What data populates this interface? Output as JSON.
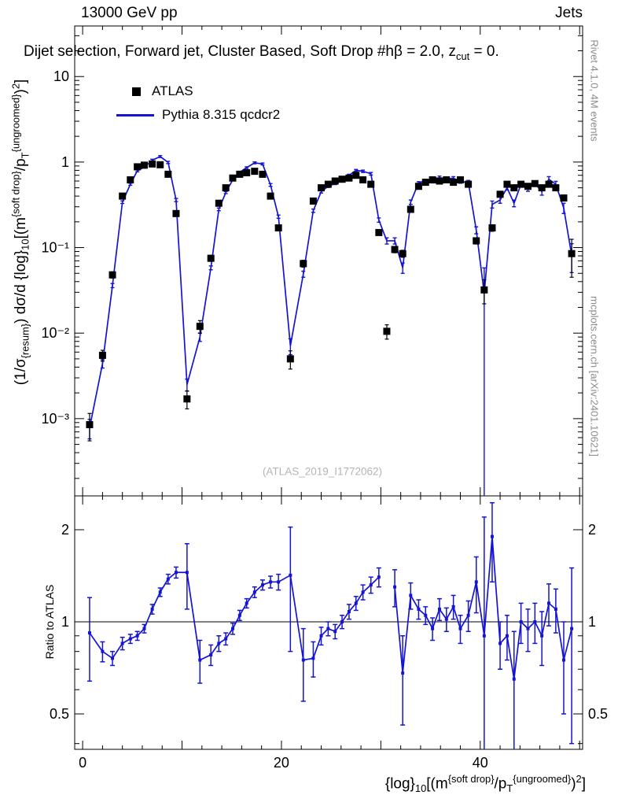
{
  "header": {
    "left": "13000 GeV pp",
    "right": "Jets"
  },
  "title_parts": [
    {
      "t": "Dijet selection, Forward jet, Cluster Based, Soft Drop #hβ = 2.0, z"
    },
    {
      "t": "cut",
      "m": "sub"
    },
    {
      "t": " = 0."
    }
  ],
  "legend": {
    "entries": [
      {
        "label": "ATLAS",
        "marker": "square",
        "color": "#000000"
      },
      {
        "label": "Pythia 8.315 qcdcr2",
        "marker": "line",
        "color": "#1414d2"
      }
    ]
  },
  "side_text_top": "Rivet 4.1.0,  4M events",
  "side_text_bottom": "mcplots.cern.ch [arXiv:2401.10621]",
  "watermark": "(ATLAS_2019_I1772062)",
  "ratio_label": "Ratio to ATLAS",
  "ylabel_parts": [
    {
      "t": "(1/σ"
    },
    {
      "t": "{resum}",
      "m": "sub"
    },
    {
      "t": ") dσ/d {log}"
    },
    {
      "t": "10",
      "m": "sub"
    },
    {
      "t": "[(m"
    },
    {
      "t": "{soft drop}",
      "m": "sup"
    },
    {
      "t": "/p"
    },
    {
      "t": "T",
      "m": "sub"
    },
    {
      "t": "{ungroomed}",
      "m": "sup"
    },
    {
      "t": ")"
    },
    {
      "t": "2",
      "m": "sup"
    },
    {
      "t": "]"
    }
  ],
  "xlabel_parts": [
    {
      "t": "{log}"
    },
    {
      "t": "10",
      "m": "sub"
    },
    {
      "t": "[(m"
    },
    {
      "t": "{soft drop}",
      "m": "sup"
    },
    {
      "t": "/p"
    },
    {
      "t": "T",
      "m": "sub"
    },
    {
      "t": "{ungroomed}",
      "m": "sup"
    },
    {
      "t": ")"
    },
    {
      "t": "2",
      "m": "sup"
    },
    {
      "t": "]"
    }
  ],
  "chart_data": {
    "type": "line",
    "title": "Dijet selection, Forward jet, Cluster Based, Soft Drop #hβ = 2.0, z_cut = 0.",
    "xlabel": "{log}_10[(m^{soft drop}/p_T^{ungroomed})^2]",
    "ylabel": "(1/σ_{resum}) dσ/d {log}_10[(m^{soft drop}/p_T^{ungroomed})^2]",
    "x": [
      0.7,
      2,
      3,
      4,
      4.8,
      5.5,
      6.2,
      7,
      7.8,
      8.6,
      9.4,
      10.5,
      11.8,
      12.9,
      13.7,
      14.4,
      15.1,
      15.8,
      16.5,
      17.3,
      18.1,
      18.9,
      19.7,
      20.9,
      22.2,
      23.2,
      24,
      24.7,
      25.4,
      26.1,
      26.8,
      27.5,
      28.2,
      29,
      29.8,
      30.6,
      31.4,
      32.2,
      33,
      33.8,
      34.5,
      35.2,
      35.9,
      36.6,
      37.3,
      38,
      38.8,
      39.6,
      40.4,
      41.2,
      42,
      42.7,
      43.4,
      44.1,
      44.8,
      45.5,
      46.2,
      46.9,
      47.6,
      48.4,
      49.2
    ],
    "series": [
      {
        "name": "ATLAS",
        "style": "squares",
        "color": "#000000",
        "y": [
          0.00085,
          0.0055,
          0.048,
          0.4,
          0.62,
          0.88,
          0.92,
          0.95,
          0.93,
          0.72,
          0.25,
          0.0017,
          0.012,
          0.075,
          0.33,
          0.5,
          0.65,
          0.72,
          0.75,
          0.78,
          0.72,
          0.4,
          0.17,
          0.005,
          0.065,
          0.35,
          0.5,
          0.55,
          0.6,
          0.63,
          0.65,
          0.7,
          0.62,
          0.55,
          0.15,
          0.0105,
          0.095,
          0.085,
          0.28,
          0.52,
          0.58,
          0.62,
          0.6,
          0.62,
          0.58,
          0.62,
          0.55,
          0.12,
          0.032,
          0.17,
          0.42,
          0.55,
          0.5,
          0.55,
          0.52,
          0.56,
          0.5,
          0.55,
          0.5,
          0.38,
          0.085
        ],
        "yerr": [
          0.0003,
          0.0008,
          0.004,
          0.02,
          0.03,
          0.04,
          0.04,
          0.04,
          0.04,
          0.03,
          0.015,
          0.0004,
          0.002,
          0.006,
          0.02,
          0.025,
          0.03,
          0.03,
          0.03,
          0.03,
          0.03,
          0.02,
          0.01,
          0.0012,
          0.006,
          0.02,
          0.025,
          0.025,
          0.03,
          0.03,
          0.03,
          0.03,
          0.03,
          0.025,
          0.01,
          0.002,
          0.008,
          0.008,
          0.02,
          0.025,
          0.03,
          0.03,
          0.03,
          0.03,
          0.03,
          0.03,
          0.03,
          0.01,
          0.01,
          0.015,
          0.025,
          0.03,
          0.03,
          0.03,
          0.03,
          0.03,
          0.03,
          0.03,
          0.03,
          0.025,
          0.04
        ]
      },
      {
        "name": "Pythia 8.315 qcdcr2",
        "style": "line",
        "color": "#1414d2",
        "y": [
          0.00078,
          0.0044,
          0.036,
          0.34,
          0.55,
          0.79,
          0.87,
          1.05,
          1.16,
          0.99,
          0.36,
          0.0025,
          0.009,
          0.058,
          0.28,
          0.44,
          0.62,
          0.76,
          0.86,
          0.98,
          0.95,
          0.54,
          0.23,
          0.0071,
          0.049,
          0.27,
          0.45,
          0.52,
          0.56,
          0.63,
          0.7,
          0.8,
          0.78,
          0.73,
          0.21,
          0.12,
          0.12,
          0.058,
          0.34,
          0.57,
          0.61,
          0.59,
          0.66,
          0.63,
          0.65,
          0.59,
          0.58,
          0.16,
          0.029,
          0.32,
          0.36,
          0.5,
          0.33,
          0.55,
          0.49,
          0.56,
          0.45,
          0.63,
          0.55,
          0.29,
          0.081
        ],
        "yerr": [
          0.0002,
          0.0005,
          0.002,
          0.012,
          0.015,
          0.02,
          0.02,
          0.03,
          0.03,
          0.03,
          0.015,
          0.0004,
          0.001,
          0.003,
          0.01,
          0.012,
          0.015,
          0.02,
          0.02,
          0.025,
          0.025,
          0.02,
          0.01,
          0.0015,
          0.004,
          0.012,
          0.015,
          0.015,
          0.015,
          0.02,
          0.02,
          0.02,
          0.025,
          0.025,
          0.012,
          0.01,
          0.01,
          0.008,
          0.02,
          0.02,
          0.02,
          0.02,
          0.025,
          0.025,
          0.025,
          0.025,
          0.03,
          0.015,
          0.0289,
          0.03,
          0.03,
          0.03,
          0.03,
          0.035,
          0.035,
          0.04,
          0.04,
          0.045,
          0.045,
          0.04,
          0.03
        ]
      }
    ],
    "ratio": {
      "name": "Ratio to ATLAS",
      "y": [
        0.92,
        0.8,
        0.76,
        0.85,
        0.88,
        0.9,
        0.95,
        1.1,
        1.25,
        1.38,
        1.45,
        1.45,
        0.75,
        0.78,
        0.85,
        0.88,
        0.95,
        1.05,
        1.15,
        1.25,
        1.32,
        1.35,
        1.35,
        1.42,
        0.75,
        0.76,
        0.9,
        0.95,
        0.93,
        1,
        1.08,
        1.15,
        1.25,
        1.32,
        1.4,
        null,
        1.3,
        0.68,
        1.22,
        1.1,
        1.05,
        0.95,
        1.1,
        1.02,
        1.12,
        0.95,
        1.05,
        1.35,
        0.9,
        1.9,
        0.85,
        0.9,
        0.65,
        1,
        0.95,
        1,
        0.9,
        1.15,
        1.1,
        0.75,
        0.95
      ],
      "yerr": [
        0.28,
        0.06,
        0.04,
        0.04,
        0.03,
        0.03,
        0.03,
        0.04,
        0.04,
        0.05,
        0.06,
        0.35,
        0.12,
        0.06,
        0.05,
        0.04,
        0.04,
        0.04,
        0.04,
        0.05,
        0.05,
        0.06,
        0.08,
        0.62,
        0.2,
        0.1,
        0.06,
        0.05,
        0.05,
        0.05,
        0.06,
        0.06,
        0.07,
        0.08,
        0.1,
        null,
        0.18,
        0.22,
        0.12,
        0.08,
        0.07,
        0.08,
        0.09,
        0.09,
        0.1,
        0.1,
        0.12,
        0.28,
        1.3,
        0.55,
        0.15,
        0.15,
        0.28,
        0.15,
        0.15,
        0.15,
        0.18,
        0.18,
        0.18,
        0.25,
        0.55
      ]
    },
    "main_axis": {
      "scale": "log",
      "range": [
        0.000125,
        39
      ],
      "ticks": [
        {
          "v": 10,
          "label": "10"
        },
        {
          "v": 1,
          "label": "1"
        },
        {
          "v": 0.1,
          "label": "10⁻¹"
        },
        {
          "v": 0.01,
          "label": "10⁻²"
        },
        {
          "v": 0.001,
          "label": "10⁻³"
        }
      ]
    },
    "ratio_axis": {
      "scale": "log",
      "range": [
        0.383,
        2.58
      ],
      "refline": 1,
      "ticks": [
        {
          "v": 2,
          "label": "2"
        },
        {
          "v": 1,
          "label": "1"
        },
        {
          "v": 0.5,
          "label": "0.5"
        }
      ],
      "minor": [
        0.4,
        0.6,
        0.7,
        0.8,
        0.9
      ]
    },
    "x_axis": {
      "range": [
        -0.8,
        50.3
      ],
      "minor_step": 2,
      "labeled_ticks": [
        {
          "v": 0,
          "label": "0"
        },
        {
          "v": 20,
          "label": "20"
        },
        {
          "v": 40,
          "label": "40"
        }
      ]
    },
    "grid": false,
    "legend_position": "top-left-inside"
  }
}
